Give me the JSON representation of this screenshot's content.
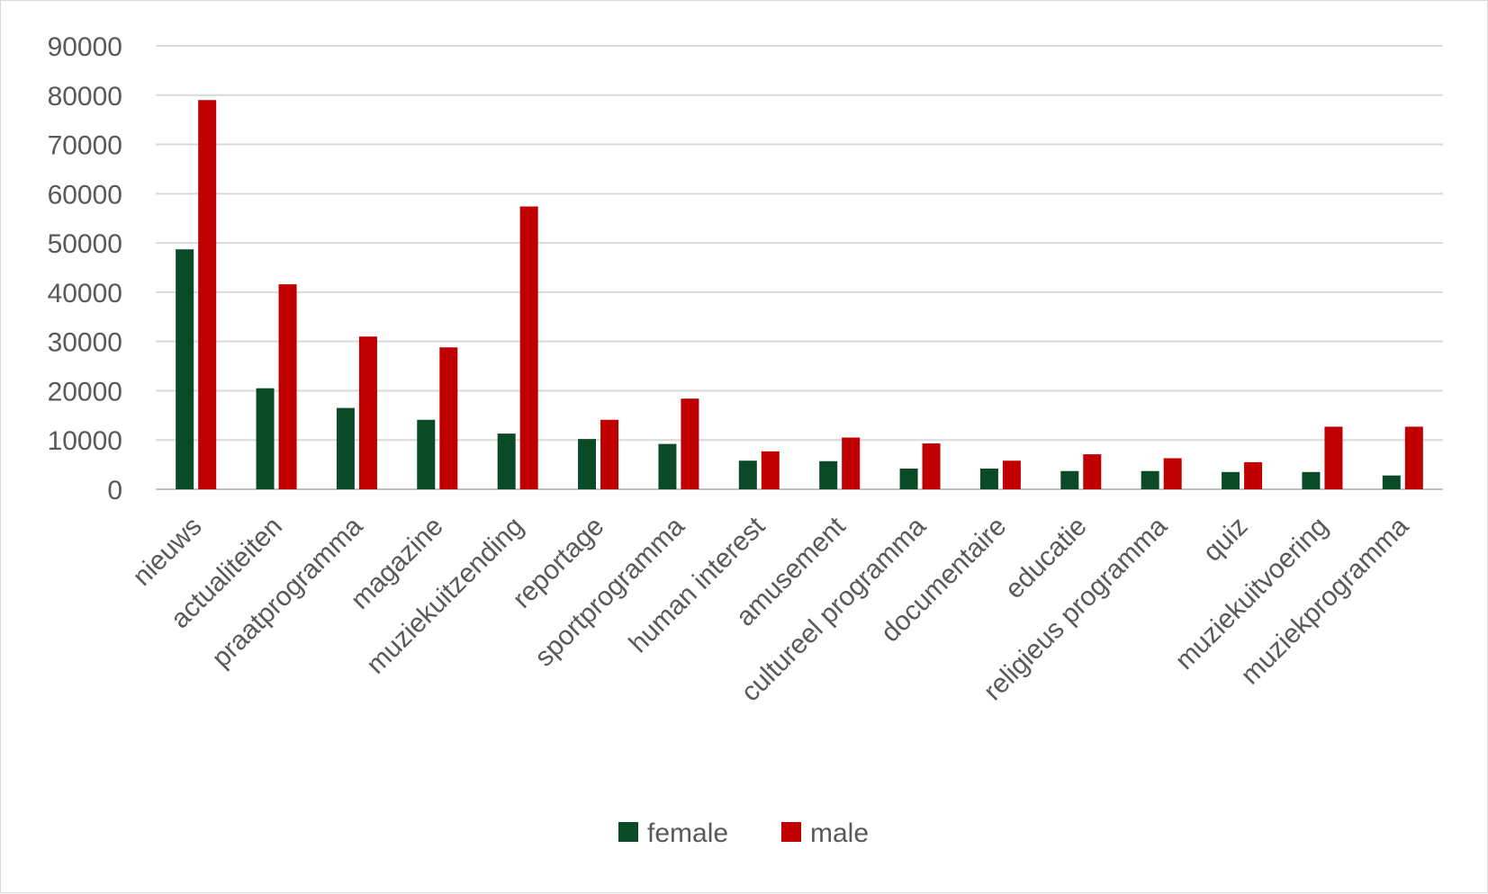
{
  "chart_data": {
    "type": "bar",
    "title": "",
    "xlabel": "",
    "ylabel": "",
    "ylim": [
      0,
      90000
    ],
    "yticks": [
      0,
      10000,
      20000,
      30000,
      40000,
      50000,
      60000,
      70000,
      80000,
      90000
    ],
    "grid": true,
    "legend_position": "bottom",
    "categories": [
      "nieuws",
      "actualiteiten",
      "praatprogramma",
      "magazine",
      "muziekuitzending",
      "reportage",
      "sportprogramma",
      "human interest",
      "amusement",
      "cultureel programma",
      "documentaire",
      "educatie",
      "religieus programma",
      "quiz",
      "muziekuitvoering",
      "muziekprogramma"
    ],
    "series": [
      {
        "name": "female",
        "color": "#0b4a26",
        "values": [
          48700,
          20500,
          16500,
          14100,
          11300,
          10200,
          9200,
          5800,
          5700,
          4200,
          4200,
          3700,
          3700,
          3500,
          3500,
          2800
        ]
      },
      {
        "name": "male",
        "color": "#c00000",
        "values": [
          79000,
          41600,
          31000,
          28800,
          57400,
          14100,
          18400,
          7700,
          10500,
          9300,
          5800,
          7100,
          6300,
          5500,
          12700,
          12700
        ]
      }
    ]
  }
}
